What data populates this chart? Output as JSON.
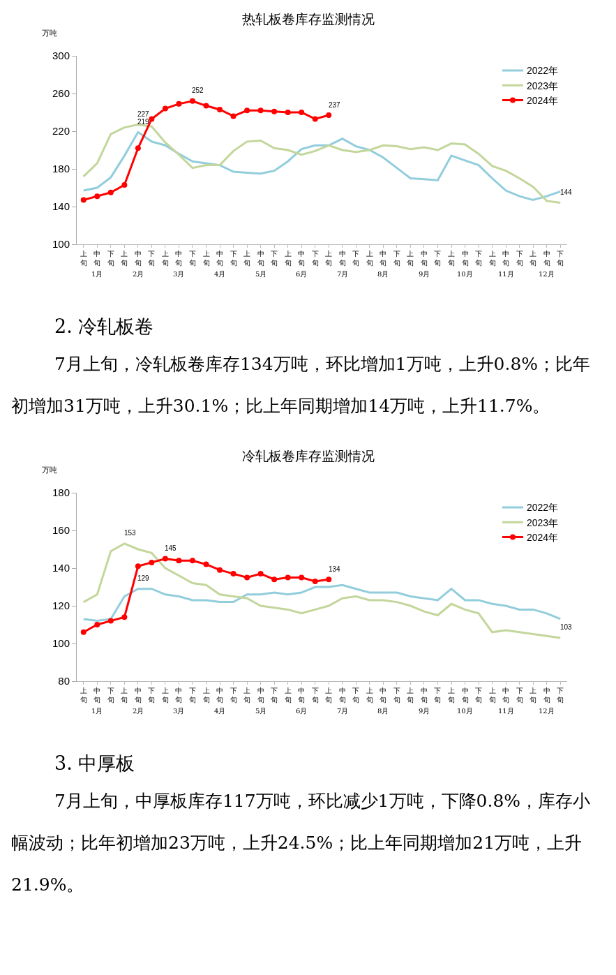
{
  "chart_data": [
    {
      "type": "line",
      "title": "热轧板卷库存监测情况",
      "ylabel": "万吨",
      "categories": [
        "上旬",
        "中旬",
        "下旬",
        "上旬",
        "中旬",
        "下旬",
        "上旬",
        "中旬",
        "下旬",
        "上旬",
        "中旬",
        "下旬",
        "上旬",
        "中旬",
        "下旬",
        "上旬",
        "中旬",
        "下旬",
        "上旬",
        "中旬",
        "下旬",
        "上旬",
        "中旬",
        "下旬",
        "上旬",
        "中旬",
        "下旬",
        "上旬",
        "中旬",
        "下旬",
        "上旬",
        "中旬",
        "下旬",
        "上旬",
        "中旬",
        "下旬"
      ],
      "ylim": [
        100,
        300
      ],
      "yticks": [
        100,
        140,
        180,
        220,
        260,
        300
      ],
      "grid": false,
      "legend": "top right",
      "line_style": "solid",
      "annotations": [
        "1月",
        "2月",
        "3月",
        "4月",
        "5月",
        "6月",
        "7月",
        "8月",
        "9月",
        "10月",
        "11月",
        "12月"
      ],
      "series": [
        {
          "name": "2022年",
          "color": "#92cddc",
          "marker": "none",
          "values": [
            157,
            160,
            171,
            194,
            219,
            209,
            205,
            196,
            188,
            186,
            184,
            177,
            176,
            175,
            178,
            188,
            201,
            205,
            205,
            212,
            204,
            200,
            192,
            181,
            170,
            169,
            168,
            194,
            189,
            184,
            170,
            157,
            151,
            147,
            151,
            156
          ],
          "value_labels": [
            null,
            null,
            null,
            null,
            "219",
            null,
            null,
            null,
            null,
            null,
            null,
            null,
            null,
            null,
            null,
            null,
            null,
            null,
            null,
            null,
            null,
            null,
            null,
            null,
            null,
            null,
            null,
            null,
            null,
            null,
            null,
            null,
            null,
            null,
            null,
            null
          ]
        },
        {
          "name": "2023年",
          "color": "#c3d69b",
          "marker": "none",
          "values": [
            172,
            186,
            217,
            224,
            227,
            225,
            208,
            195,
            181,
            184,
            184,
            199,
            209,
            210,
            202,
            200,
            195,
            199,
            205,
            200,
            198,
            200,
            205,
            204,
            201,
            203,
            200,
            207,
            206,
            196,
            183,
            178,
            170,
            161,
            146,
            144
          ],
          "value_labels": [
            null,
            null,
            null,
            null,
            "227",
            null,
            null,
            null,
            null,
            null,
            null,
            null,
            null,
            null,
            null,
            null,
            null,
            null,
            null,
            null,
            null,
            null,
            null,
            null,
            null,
            null,
            null,
            null,
            null,
            null,
            null,
            null,
            null,
            null,
            null,
            "144"
          ]
        },
        {
          "name": "2024年",
          "color": "#ff0000",
          "marker": "circle",
          "values": [
            147,
            151,
            155,
            163,
            202,
            233,
            244,
            249,
            252,
            247,
            243,
            236,
            242,
            242,
            241,
            240,
            240,
            233,
            237,
            null,
            null,
            null,
            null,
            null,
            null,
            null,
            null,
            null,
            null,
            null,
            null,
            null,
            null,
            null,
            null,
            null
          ],
          "value_labels": [
            null,
            null,
            null,
            null,
            null,
            null,
            null,
            null,
            "252",
            null,
            null,
            null,
            null,
            null,
            null,
            null,
            null,
            null,
            "237",
            null,
            null,
            null,
            null,
            null,
            null,
            null,
            null,
            null,
            null,
            null,
            null,
            null,
            null,
            null,
            null,
            null
          ]
        }
      ]
    },
    {
      "type": "other",
      "title": "2. 冷轧板卷",
      "annotations": [
        "7月上旬，冷轧板卷库存134万吨，环比增加1万吨，上升0.8%；比年初增加31万吨，上升30.1%；比上年同期增加14万吨，上升11.7%。"
      ]
    },
    {
      "type": "line",
      "title": "冷轧板卷库存监测情况",
      "ylabel": "万吨",
      "categories": [
        "上旬",
        "中旬",
        "下旬",
        "上旬",
        "中旬",
        "下旬",
        "上旬",
        "中旬",
        "下旬",
        "上旬",
        "中旬",
        "下旬",
        "上旬",
        "中旬",
        "下旬",
        "上旬",
        "中旬",
        "下旬",
        "上旬",
        "中旬",
        "下旬",
        "上旬",
        "中旬",
        "下旬",
        "上旬",
        "中旬",
        "下旬",
        "上旬",
        "中旬",
        "下旬",
        "上旬",
        "中旬",
        "下旬",
        "上旬",
        "中旬",
        "下旬"
      ],
      "ylim": [
        80,
        180
      ],
      "yticks": [
        80,
        100,
        120,
        140,
        160,
        180
      ],
      "grid": false,
      "legend": "top right",
      "line_style": "solid",
      "annotations": [
        "1月",
        "2月",
        "3月",
        "4月",
        "5月",
        "6月",
        "7月",
        "8月",
        "9月",
        "10月",
        "11月",
        "12月"
      ],
      "series": [
        {
          "name": "2022年",
          "color": "#92cddc",
          "marker": "none",
          "values": [
            113,
            112,
            113,
            125,
            129,
            129,
            126,
            125,
            123,
            123,
            122,
            122,
            126,
            126,
            127,
            126,
            127,
            130,
            130,
            131,
            129,
            127,
            127,
            127,
            125,
            124,
            123,
            129,
            123,
            123,
            121,
            120,
            118,
            118,
            116,
            113
          ],
          "value_labels": [
            null,
            null,
            null,
            null,
            "129",
            null,
            null,
            null,
            null,
            null,
            null,
            null,
            null,
            null,
            null,
            null,
            null,
            null,
            null,
            null,
            null,
            null,
            null,
            null,
            null,
            null,
            null,
            null,
            null,
            null,
            null,
            null,
            null,
            null,
            null,
            null
          ]
        },
        {
          "name": "2023年",
          "color": "#c3d69b",
          "marker": "none",
          "values": [
            122,
            126,
            149,
            153,
            150,
            148,
            140,
            136,
            132,
            131,
            126,
            125,
            124,
            120,
            119,
            118,
            116,
            118,
            120,
            124,
            125,
            123,
            123,
            122,
            120,
            117,
            115,
            121,
            118,
            116,
            106,
            107,
            106,
            105,
            104,
            103
          ],
          "value_labels": [
            null,
            null,
            null,
            "153",
            null,
            null,
            null,
            null,
            null,
            null,
            null,
            null,
            null,
            null,
            null,
            null,
            null,
            null,
            null,
            null,
            null,
            null,
            null,
            null,
            null,
            null,
            null,
            null,
            null,
            null,
            null,
            null,
            null,
            null,
            null,
            "103"
          ]
        },
        {
          "name": "2024年",
          "color": "#ff0000",
          "marker": "circle",
          "values": [
            106,
            110,
            112,
            114,
            141,
            143,
            145,
            144,
            144,
            142,
            139,
            137,
            135,
            137,
            134,
            135,
            135,
            133,
            134,
            null,
            null,
            null,
            null,
            null,
            null,
            null,
            null,
            null,
            null,
            null,
            null,
            null,
            null,
            null,
            null,
            null
          ],
          "value_labels": [
            null,
            null,
            null,
            null,
            null,
            null,
            "145",
            null,
            null,
            null,
            null,
            null,
            null,
            null,
            null,
            null,
            null,
            null,
            "134",
            null,
            null,
            null,
            null,
            null,
            null,
            null,
            null,
            null,
            null,
            null,
            null,
            null,
            null,
            null,
            null,
            null
          ]
        }
      ]
    },
    {
      "type": "other",
      "title": "3. 中厚板",
      "annotations": [
        "7月上旬，中厚板库存117万吨，环比减少1万吨，下降0.8%，库存小幅波动；比年初增加23万吨，上升24.5%；比上年同期增加21万吨，上升21.9%。"
      ]
    }
  ]
}
